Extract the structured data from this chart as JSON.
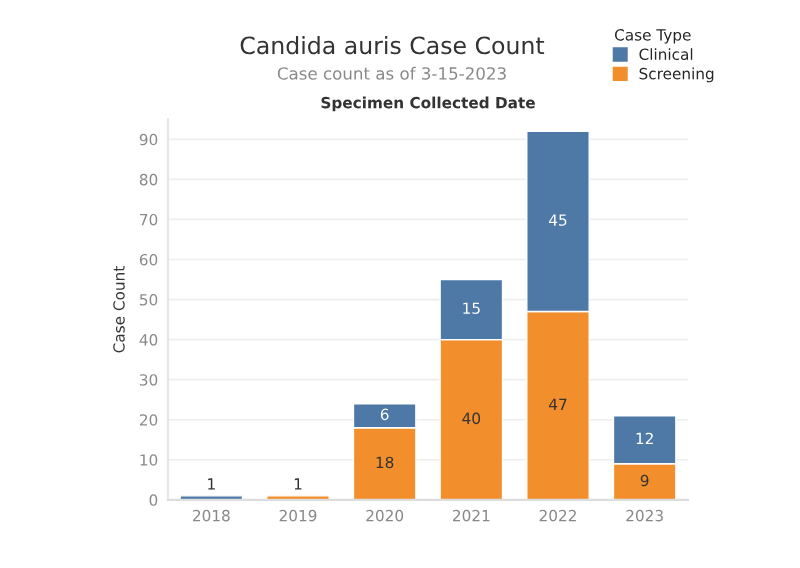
{
  "chart_data": {
    "type": "bar",
    "title": "Candida auris Case Count",
    "subtitle": "Case count as of 3-15-2023",
    "xlabel": "Specimen Collected Date",
    "ylabel": "Case Count",
    "legend_title": "Case Type",
    "categories": [
      "2018",
      "2019",
      "2020",
      "2021",
      "2022",
      "2023"
    ],
    "stacked": true,
    "series": [
      {
        "name": "Screening",
        "color": "#f28e2b",
        "values": [
          null,
          1,
          18,
          40,
          47,
          9
        ],
        "value_labels": [
          null,
          "1",
          "18",
          "40",
          "47",
          "9"
        ]
      },
      {
        "name": "Clinical",
        "color": "#4e79a7",
        "values": [
          1,
          null,
          6,
          15,
          45,
          12
        ],
        "value_labels": [
          "1",
          null,
          "6",
          "15",
          "45",
          "12"
        ]
      }
    ],
    "ylim": [
      0,
      95
    ],
    "yticks": [
      0,
      10,
      20,
      30,
      40,
      50,
      60,
      70,
      80,
      90
    ],
    "grid": "y",
    "legend": "top right"
  }
}
